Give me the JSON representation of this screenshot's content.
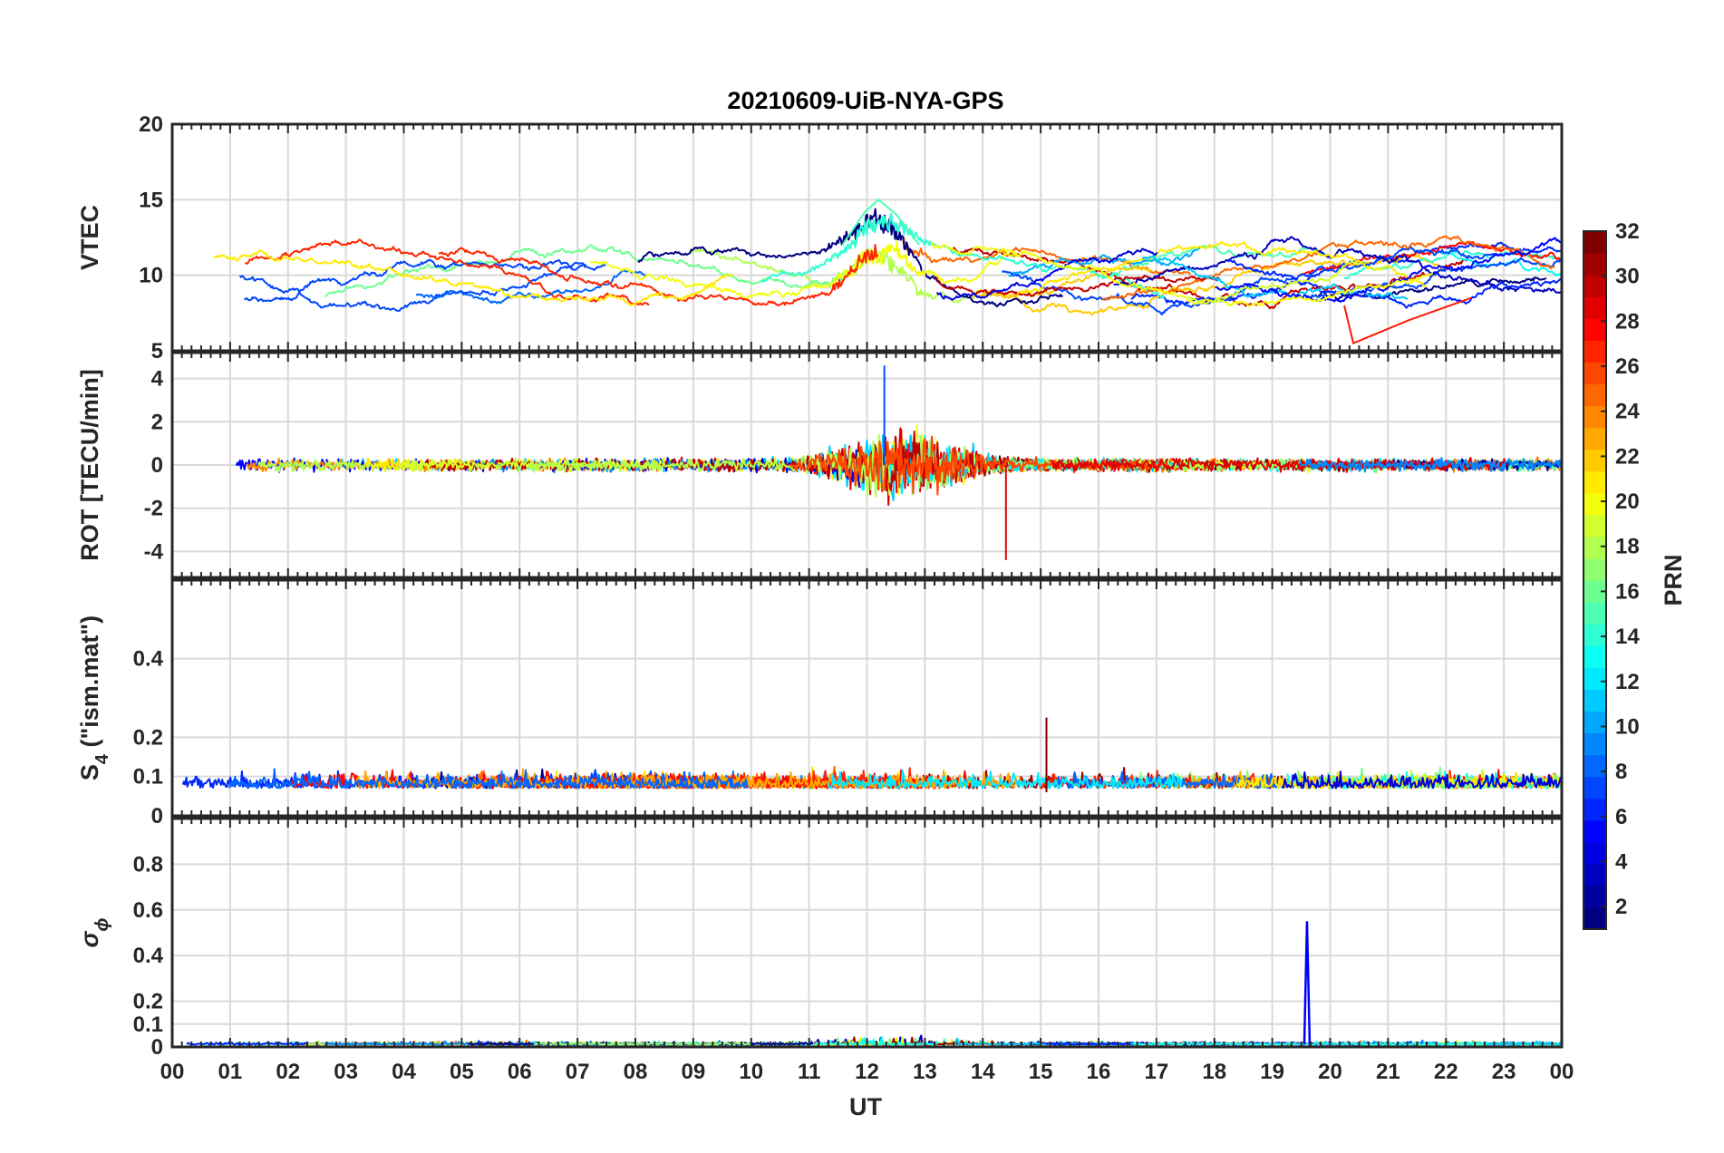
{
  "chart_data": {
    "type": "line",
    "title": "20210609-UiB-NYA-GPS",
    "xlabel": "UT",
    "x_tick_labels": [
      "00",
      "01",
      "02",
      "03",
      "04",
      "05",
      "06",
      "07",
      "08",
      "09",
      "10",
      "11",
      "12",
      "13",
      "14",
      "15",
      "16",
      "17",
      "18",
      "19",
      "20",
      "21",
      "22",
      "23",
      "00"
    ],
    "xlim_hours": [
      0,
      24
    ],
    "grid": true,
    "colormap": "jet",
    "colorbar": {
      "label": "PRN",
      "limits": [
        1,
        32
      ],
      "tick_labels": [
        "2",
        "4",
        "6",
        "8",
        "10",
        "12",
        "14",
        "16",
        "18",
        "20",
        "22",
        "24",
        "26",
        "28",
        "30",
        "32"
      ]
    },
    "panels": [
      {
        "id": "vtec",
        "ylabel": "VTEC",
        "ylim": [
          5,
          20
        ],
        "y_ticks": [
          5,
          10,
          15,
          20
        ],
        "y_tick_labels": [
          "5",
          "10",
          "15",
          "20"
        ],
        "description_values": {
          "baseline": 10,
          "peak_value": 15,
          "peak_time_hours": 12.2,
          "min_value": 5.5,
          "min_time_hours": 20.4
        }
      },
      {
        "id": "rot",
        "ylabel": "ROT [TECU/min]",
        "ylim": [
          -5.2,
          5.2
        ],
        "y_ticks": [
          -4,
          -2,
          0,
          2,
          4
        ],
        "y_tick_labels": [
          "-4",
          "-2",
          "0",
          "2",
          "4"
        ],
        "description_values": {
          "baseline": 0,
          "max_value": 4.6,
          "max_time_hours": 12.3,
          "min_value": -4.4,
          "min_time_hours": 14.4
        }
      },
      {
        "id": "s4",
        "ylabel_main": "S",
        "ylabel_sub": "4",
        "ylabel_rest": " (\"ism.mat\")",
        "ylim": [
          0,
          0.6
        ],
        "y_ticks": [
          0,
          0.1,
          0.2,
          0.4
        ],
        "y_tick_labels": [
          "0",
          "0.1",
          "0.2",
          "0.4"
        ],
        "description_values": {
          "baseline": 0.07,
          "max_value": 0.25,
          "max_time_hours": 15.1
        }
      },
      {
        "id": "sigma_phi",
        "ylabel_main": "σ",
        "ylabel_sub": "ϕ",
        "ylim": [
          0,
          1
        ],
        "y_ticks": [
          0,
          0.1,
          0.2,
          0.4,
          0.6,
          0.8
        ],
        "y_tick_labels": [
          "0",
          "0.1",
          "0.2",
          "0.4",
          "0.6",
          "0.8"
        ],
        "description_values": {
          "baseline": 0.01,
          "spike_value": 0.55,
          "spike_time_hours": 19.6
        }
      }
    ]
  }
}
